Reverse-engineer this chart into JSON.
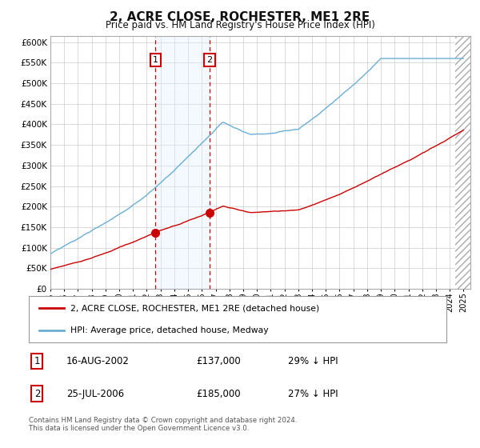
{
  "title": "2, ACRE CLOSE, ROCHESTER, ME1 2RE",
  "subtitle": "Price paid vs. HM Land Registry's House Price Index (HPI)",
  "ytick_values": [
    0,
    50000,
    100000,
    150000,
    200000,
    250000,
    300000,
    350000,
    400000,
    450000,
    500000,
    550000,
    600000
  ],
  "ylim": [
    0,
    615000
  ],
  "xlim_start": 1995.0,
  "xlim_end": 2025.5,
  "hatch_start": 2024.42,
  "sale1_date": 2002.62,
  "sale1_price": 137000,
  "sale1_label": "1",
  "sale2_date": 2006.56,
  "sale2_price": 185000,
  "sale2_label": "2",
  "hpi_color": "#6baed6",
  "price_color": "#cc0000",
  "grid_color": "#cccccc",
  "shade_color": "#ddeeff",
  "legend_line1": "2, ACRE CLOSE, ROCHESTER, ME1 2RE (detached house)",
  "legend_line2": "HPI: Average price, detached house, Medway",
  "table_row1": [
    "1",
    "16-AUG-2002",
    "£137,000",
    "29% ↓ HPI"
  ],
  "table_row2": [
    "2",
    "25-JUL-2006",
    "£185,000",
    "27% ↓ HPI"
  ],
  "footnote": "Contains HM Land Registry data © Crown copyright and database right 2024.\nThis data is licensed under the Open Government Licence v3.0.",
  "background_color": "#ffffff"
}
